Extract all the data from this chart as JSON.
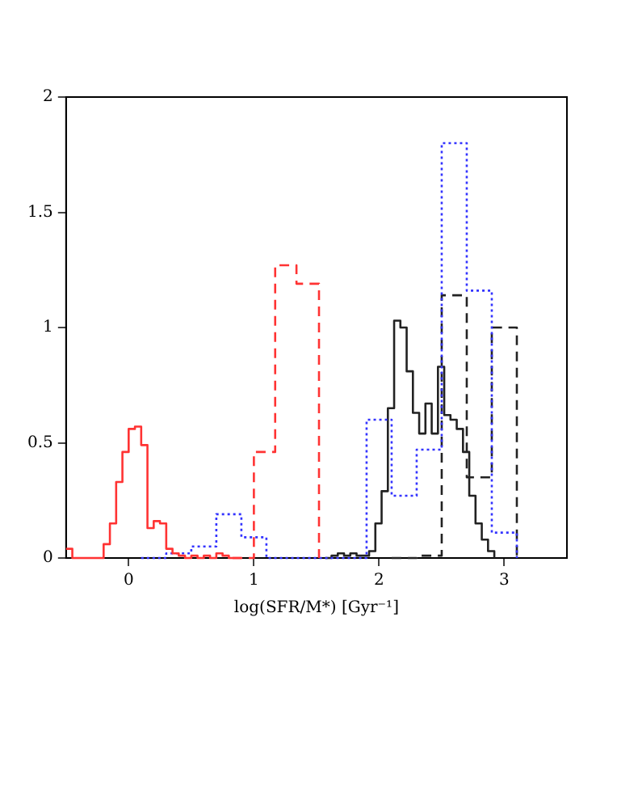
{
  "chart_data": {
    "type": "step",
    "xlabel": "log(SFR/M*) [Gyr⁻¹]",
    "xlim": [
      -0.5,
      3.5
    ],
    "xticks": [
      0,
      1,
      2,
      3
    ],
    "ylim": [
      0,
      2
    ],
    "yticks": [
      0,
      0.5,
      1,
      1.5,
      2
    ],
    "grid": false,
    "legend": false,
    "marker": "none",
    "series": [
      {
        "color": "#ff3333",
        "line_style": "solid",
        "x": [
          -0.5,
          -0.45,
          -0.4,
          -0.35,
          -0.3,
          -0.25,
          -0.2,
          -0.15,
          -0.1,
          -0.05,
          0,
          0.05,
          0.1,
          0.15,
          0.2,
          0.25,
          0.3,
          0.35,
          0.4,
          0.45,
          0.5,
          0.55,
          0.6,
          0.65,
          0.7,
          0.75,
          0.8,
          0.85,
          0.9
        ],
        "values": [
          0.04,
          0,
          0,
          0,
          0,
          0,
          0.06,
          0.15,
          0.33,
          0.46,
          0.56,
          0.57,
          0.49,
          0.13,
          0.16,
          0.15,
          0.04,
          0.02,
          0.01,
          0,
          0.01,
          0,
          0.01,
          0,
          0.02,
          0.01,
          0,
          0,
          0
        ]
      },
      {
        "color": "#ff3333",
        "line_style": "dashed",
        "x": [
          0.83,
          1.0,
          1.17,
          1.34,
          1.52
        ],
        "values": [
          0,
          0.46,
          1.27,
          1.19,
          0
        ]
      },
      {
        "color": "#3333ff",
        "line_style": "dotted",
        "x": [
          0.1,
          0.3,
          0.5,
          0.7,
          0.9,
          1.1,
          1.3,
          1.5,
          1.7,
          1.9,
          2.1,
          2.3,
          2.5,
          2.7,
          2.9,
          3.1
        ],
        "values": [
          0,
          0.02,
          0.05,
          0.19,
          0.09,
          0,
          0,
          0,
          0,
          0.6,
          0.27,
          0.47,
          1.8,
          1.16,
          0.11,
          0
        ]
      },
      {
        "color": "#222222",
        "line_style": "solid",
        "x": [
          1.57,
          1.62,
          1.67,
          1.72,
          1.77,
          1.82,
          1.87,
          1.92,
          1.97,
          2.02,
          2.07,
          2.12,
          2.17,
          2.22,
          2.27,
          2.32,
          2.37,
          2.42,
          2.47,
          2.52,
          2.57,
          2.62,
          2.67,
          2.72,
          2.77,
          2.82,
          2.87,
          2.92
        ],
        "values": [
          0,
          0.01,
          0.02,
          0.01,
          0.02,
          0.01,
          0.01,
          0.03,
          0.15,
          0.29,
          0.65,
          1.03,
          1.0,
          0.81,
          0.63,
          0.54,
          0.67,
          0.54,
          0.83,
          0.62,
          0.6,
          0.56,
          0.46,
          0.27,
          0.15,
          0.08,
          0.03,
          0
        ]
      },
      {
        "color": "#222222",
        "line_style": "dashed",
        "x": [
          2.1,
          2.3,
          2.5,
          2.7,
          2.9,
          3.1
        ],
        "values": [
          0,
          0.01,
          1.14,
          0.35,
          1.0,
          0
        ]
      }
    ]
  }
}
